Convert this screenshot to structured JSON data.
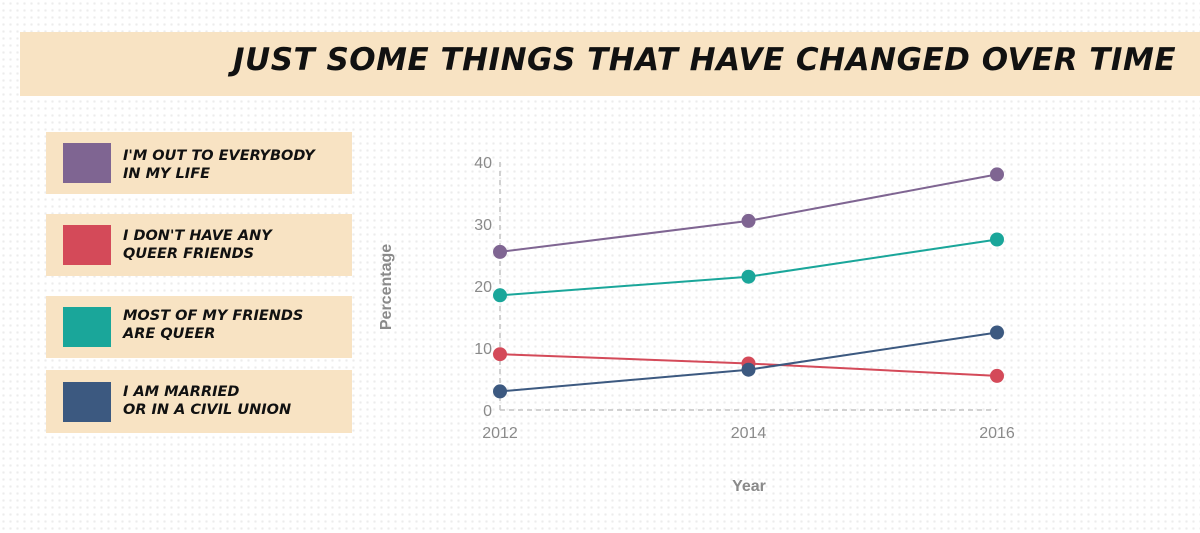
{
  "title": "JUST SOME THINGS THAT HAVE CHANGED OVER TIME",
  "legend": [
    {
      "label": "I'M OUT TO EVERYBODY\nIN MY LIFE",
      "color": "#7f6592"
    },
    {
      "label": "I DON'T HAVE ANY\nQUEER FRIENDS",
      "color": "#d44a59"
    },
    {
      "label": "MOST OF MY FRIENDS\nARE QUEER",
      "color": "#1aa69a"
    },
    {
      "label": "I AM MARRIED\nOR IN A CIVIL UNION",
      "color": "#3c5980"
    }
  ],
  "chart_data": {
    "type": "line",
    "x": [
      2012,
      2014,
      2016
    ],
    "xlabel": "Year",
    "ylabel": "Percentage",
    "ylim": [
      0,
      40
    ],
    "yticks": [
      0,
      10,
      20,
      30,
      40
    ],
    "xticks": [
      2012,
      2014,
      2016
    ],
    "grid": false,
    "series": [
      {
        "name": "I'M OUT TO EVERYBODY IN MY LIFE",
        "color": "#7f6592",
        "values": [
          25.5,
          30.5,
          38
        ]
      },
      {
        "name": "I DON'T HAVE ANY QUEER FRIENDS",
        "color": "#d44a59",
        "values": [
          9,
          7.5,
          5.5
        ]
      },
      {
        "name": "MOST OF MY FRIENDS ARE QUEER",
        "color": "#1aa69a",
        "values": [
          18.5,
          21.5,
          27.5
        ]
      },
      {
        "name": "I AM MARRIED OR IN A CIVIL UNION",
        "color": "#3c5980",
        "values": [
          3,
          6.5,
          12.5
        ]
      }
    ]
  }
}
